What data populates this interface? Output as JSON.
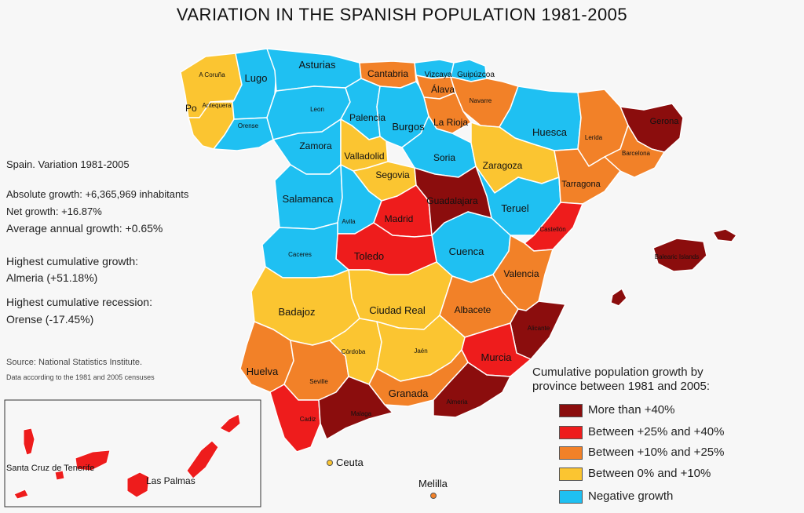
{
  "title": "VARIATION IN THE SPANISH POPULATION 1981-2005",
  "stats": {
    "heading": "Spain. Variation 1981-2005",
    "absolute_growth": "Absolute growth: +6,365,969 inhabitants",
    "net_growth": "Net growth: +16.87%",
    "average_growth": "Average annual growth: +0.65%",
    "highest_growth_label": "Highest cumulative growth:",
    "highest_growth_value": "Almeria (+51.18%)",
    "highest_recession_label": "Highest cumulative recession:",
    "highest_recession_value": "Orense (-17.45%)",
    "source": "Source: National Statistics Institute.",
    "data_note": "Data according to the 1981 and 2005 censuses"
  },
  "colors": {
    "more_than_40": "#8b0d0d",
    "between_25_40": "#ee1c1c",
    "between_10_25": "#f28128",
    "between_0_10": "#fbc531",
    "negative": "#1fc0f2",
    "border": "#ffffff"
  },
  "legend": {
    "title_line1": "Cumulative population growth by",
    "title_line2": "province between 1981 and 2005:",
    "items": [
      {
        "label": "More than +40%",
        "color": "#8b0d0d"
      },
      {
        "label": "Between +25% and +40%",
        "color": "#ee1c1c"
      },
      {
        "label": "Between +10% and +25%",
        "color": "#f28128"
      },
      {
        "label": "Between 0% and +10%",
        "color": "#fbc531"
      },
      {
        "label": "Negative growth",
        "color": "#1fc0f2"
      }
    ]
  },
  "labels": {
    "a_coruna": "A Coruña",
    "lugo": "Lugo",
    "asturias": "Asturias",
    "cantabria": "Cantabria",
    "vizcaya": "Vizcaya",
    "guipuzcoa": "Guipúzcoa",
    "alava": "Álava",
    "navarre": "Navarre",
    "pontevedra": "Po",
    "antequera": "Antequera",
    "orense": "Orense",
    "leon": "Leon",
    "palencia": "Palencia",
    "burgos": "Burgos",
    "la_rioja": "La Rioja",
    "huesca": "Huesca",
    "gerona": "Gerona",
    "lerida": "Lerida",
    "barcelona": "Barcelona",
    "zamora": "Zamora",
    "valladolid": "Valladolid",
    "soria": "Soria",
    "zaragoza": "Zaragoza",
    "segovia": "Segovia",
    "tarragona": "Tarragona",
    "salamanca": "Salamanca",
    "guadalajara": "Guadalajara",
    "madrid": "Madrid",
    "teruel": "Teruel",
    "avila": "Avila",
    "castellon": "Castellón",
    "caceres": "Caceres",
    "toledo": "Toledo",
    "cuenca": "Cuenca",
    "balearic": "Balearic Islands",
    "valencia": "Valencia",
    "badajoz": "Badajoz",
    "ciudad_real": "Ciudad Real",
    "albacete": "Albacete",
    "alicante": "Alicante",
    "cordoba": "Córdoba",
    "jaen": "Jaén",
    "murcia": "Murcia",
    "huelva": "Huelva",
    "sevilla": "Seville",
    "granada": "Granada",
    "almeria": "Almeria",
    "cadiz": "Cadiz",
    "malaga": "Malaga",
    "santa_cruz": "Santa Cruz de Tenerife",
    "las_palmas": "Las Palmas",
    "ceuta": "Ceuta",
    "melilla": "Melilla"
  }
}
